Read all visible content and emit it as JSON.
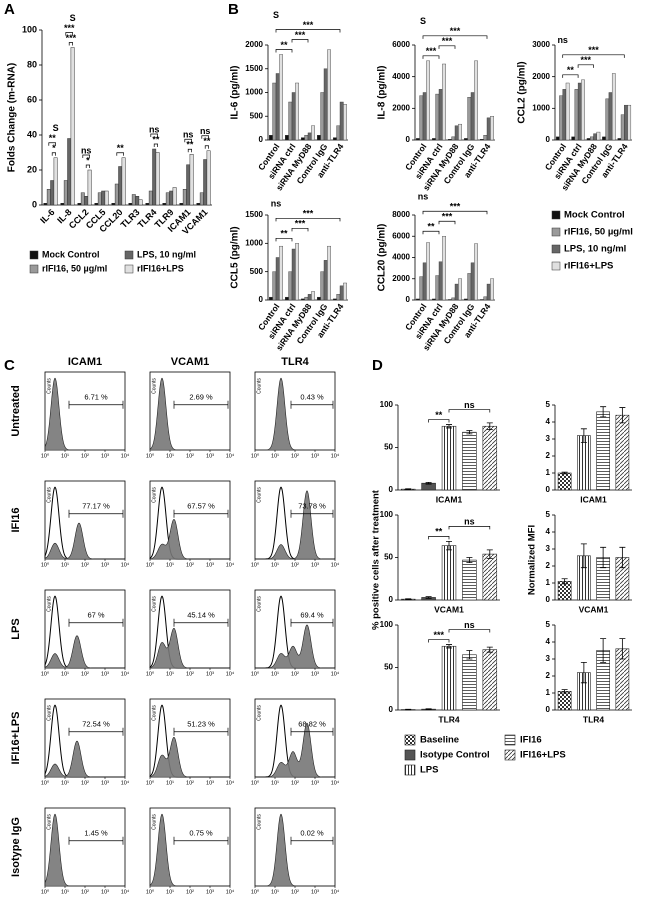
{
  "panel_labels": [
    "A",
    "B",
    "C",
    "D"
  ],
  "chart_data": [
    {
      "type": "bar",
      "ylabel": "Folds Change (m-RNA)",
      "categories": [
        "IL-6",
        "IL-8",
        "CCL2",
        "CCL5",
        "CCL20",
        "TLR3",
        "TLR4",
        "TLR9",
        "ICAM1",
        "VCAM1"
      ],
      "ylim": [
        0,
        100
      ],
      "yticks": [
        0,
        20,
        40,
        60,
        80,
        100
      ],
      "series": [
        {
          "name": "Mock Control",
          "color": "#111111",
          "values": [
            1,
            1,
            1,
            1,
            1,
            1,
            1,
            1,
            1,
            1
          ]
        },
        {
          "name": "rIFI16, 50 µg/ml",
          "color": "#9a9a9a",
          "values": [
            9,
            14,
            7,
            7,
            12,
            6,
            8,
            7,
            9,
            7
          ]
        },
        {
          "name": "LPS, 10 ng/ml",
          "color": "#666666",
          "values": [
            14,
            38,
            5,
            8,
            22,
            5,
            32,
            8,
            23,
            26
          ]
        },
        {
          "name": "rIFI16+LPS",
          "color": "#e0e0e0",
          "values": [
            27,
            90,
            20,
            8,
            27,
            3,
            30,
            10,
            29,
            31
          ]
        }
      ],
      "annotations": [
        {
          "category": 0,
          "from": 2,
          "to": 3,
          "text": "*"
        },
        {
          "category": 0,
          "from": 1,
          "to": 3,
          "text": "**"
        },
        {
          "category": 0,
          "from": 3,
          "to": 3,
          "text": "S"
        },
        {
          "category": 1,
          "from": 2,
          "to": 3,
          "text": "***"
        },
        {
          "category": 1,
          "from": 1,
          "to": 3,
          "text": "***"
        },
        {
          "category": 1,
          "from": 3,
          "to": 3,
          "text": "S"
        },
        {
          "category": 2,
          "from": 2,
          "to": 3,
          "text": "*"
        },
        {
          "category": 2,
          "from": 1,
          "to": 3,
          "text": "ns"
        },
        {
          "category": 4,
          "from": 1,
          "to": 3,
          "text": "**"
        },
        {
          "category": 6,
          "from": 2,
          "to": 3,
          "text": "**"
        },
        {
          "category": 6,
          "from": 1,
          "to": 3,
          "text": "ns"
        },
        {
          "category": 8,
          "from": 2,
          "to": 3,
          "text": "**"
        },
        {
          "category": 8,
          "from": 1,
          "to": 3,
          "text": "ns"
        },
        {
          "category": 9,
          "from": 2,
          "to": 3,
          "text": "**"
        },
        {
          "category": 9,
          "from": 1,
          "to": 3,
          "text": "ns"
        }
      ]
    },
    {
      "type": "grouped-bar-panels",
      "categories": [
        "Control",
        "siRNA ctrl",
        "siRNA MyD88",
        "Control IgG",
        "anti-TLR4"
      ],
      "series": [
        {
          "name": "Mock Control",
          "color": "#111111"
        },
        {
          "name": "rIFI16, 50 µg/ml",
          "color": "#9a9a9a"
        },
        {
          "name": "LPS, 10 ng/ml",
          "color": "#666666"
        },
        {
          "name": "rIFI16+LPS",
          "color": "#e0e0e0"
        }
      ],
      "subplots": [
        {
          "ylabel": "IL-6 (pg/ml)",
          "ylim": [
            0,
            2000
          ],
          "yticks": [
            0,
            500,
            1000,
            1500,
            2000
          ],
          "values": [
            [
              100,
              100,
              50,
              100,
              50
            ],
            [
              1200,
              800,
              100,
              1000,
              300
            ],
            [
              1400,
              1000,
              150,
              1500,
              800
            ],
            [
              1800,
              1200,
              300,
              1900,
              750
            ]
          ],
          "annotations": [
            {
              "from": 0,
              "to": 1,
              "text": "**"
            },
            {
              "from": 1,
              "to": 2,
              "text": "***"
            },
            {
              "from": 0,
              "to": 4,
              "text": "***"
            },
            {
              "from": 0,
              "to": 0,
              "text": "S"
            }
          ]
        },
        {
          "ylabel": "IL-8 (pg/ml)",
          "ylim": [
            0,
            6000
          ],
          "yticks": [
            0,
            2000,
            4000,
            6000
          ],
          "values": [
            [
              100,
              100,
              50,
              100,
              50
            ],
            [
              2800,
              2900,
              200,
              2700,
              300
            ],
            [
              3000,
              3200,
              900,
              3000,
              1400
            ],
            [
              5000,
              4800,
              1000,
              5000,
              1500
            ]
          ],
          "annotations": [
            {
              "from": 0,
              "to": 1,
              "text": "***"
            },
            {
              "from": 1,
              "to": 2,
              "text": "***"
            },
            {
              "from": 0,
              "to": 4,
              "text": "***"
            },
            {
              "from": 0,
              "to": 0,
              "text": "S"
            }
          ]
        },
        {
          "ylabel": "CCL2 (pg/ml)",
          "ylim": [
            0,
            3000
          ],
          "yticks": [
            0,
            1000,
            2000,
            3000
          ],
          "values": [
            [
              100,
              100,
              50,
              100,
              50
            ],
            [
              1400,
              1600,
              100,
              1300,
              800
            ],
            [
              1600,
              1800,
              200,
              1500,
              1100
            ],
            [
              1800,
              1900,
              250,
              2100,
              1100
            ]
          ],
          "annotations": [
            {
              "from": 0,
              "to": 1,
              "text": "**"
            },
            {
              "from": 1,
              "to": 2,
              "text": "***"
            },
            {
              "from": 0,
              "to": 4,
              "text": "***"
            },
            {
              "from": 0,
              "to": 0,
              "text": "ns"
            }
          ]
        },
        {
          "ylabel": "CCL5 (pg/ml)",
          "ylim": [
            0,
            1500
          ],
          "yticks": [
            0,
            500,
            1000,
            1500
          ],
          "values": [
            [
              50,
              50,
              20,
              50,
              20
            ],
            [
              500,
              500,
              50,
              500,
              100
            ],
            [
              750,
              900,
              100,
              700,
              250
            ],
            [
              950,
              1000,
              150,
              950,
              300
            ]
          ],
          "annotations": [
            {
              "from": 0,
              "to": 1,
              "text": "**"
            },
            {
              "from": 1,
              "to": 2,
              "text": "***"
            },
            {
              "from": 0,
              "to": 4,
              "text": "***"
            },
            {
              "from": 0,
              "to": 0,
              "text": "ns"
            }
          ]
        },
        {
          "ylabel": "CCL20 (pg/ml)",
          "ylim": [
            0,
            8000
          ],
          "yticks": [
            0,
            2000,
            4000,
            6000,
            8000
          ],
          "values": [
            [
              100,
              100,
              50,
              100,
              50
            ],
            [
              2200,
              2300,
              200,
              2500,
              300
            ],
            [
              3500,
              3600,
              1500,
              3500,
              1500
            ],
            [
              5400,
              6000,
              2000,
              5300,
              2000
            ]
          ],
          "annotations": [
            {
              "from": 0,
              "to": 1,
              "text": "**"
            },
            {
              "from": 1,
              "to": 2,
              "text": "***"
            },
            {
              "from": 0,
              "to": 4,
              "text": "***"
            },
            {
              "from": 0,
              "to": 0,
              "text": "ns"
            }
          ]
        }
      ]
    },
    {
      "type": "flow-histogram",
      "columns": [
        "ICAM1",
        "VCAM1",
        "TLR4"
      ],
      "rows": [
        "Untreated",
        "IFI16",
        "LPS",
        "IFI16+LPS",
        "Isotype IgG"
      ],
      "ylabel": "Counts",
      "xlim": [
        0,
        4
      ],
      "xticks": [
        {
          "value": 0,
          "label": "10⁰"
        },
        {
          "value": 1,
          "label": "10¹"
        },
        {
          "value": 2,
          "label": "10²"
        },
        {
          "value": 3,
          "label": "10³"
        },
        {
          "value": 4,
          "label": "10⁴"
        }
      ],
      "gates": [
        [
          1.2,
          3.9
        ],
        [
          1.2,
          3.9
        ],
        [
          1.8,
          3.9
        ]
      ],
      "panels": [
        [
          {
            "label": "6.71 %",
            "filled": [
              [
                0.5,
                100
              ]
            ],
            "open": []
          },
          {
            "label": "2.69 %",
            "filled": [
              [
                0.6,
                100
              ]
            ],
            "open": []
          },
          {
            "label": "0.43 %",
            "filled": [
              [
                1.3,
                100
              ]
            ],
            "open": []
          }
        ],
        [
          {
            "label": "77.17 %",
            "filled": [
              [
                0.5,
                22
              ],
              [
                1.7,
                50
              ]
            ],
            "open": [
              [
                0.5,
                100
              ]
            ]
          },
          {
            "label": "67.57 %",
            "filled": [
              [
                0.6,
                20
              ],
              [
                1.2,
                55
              ]
            ],
            "open": [
              [
                0.6,
                100
              ]
            ]
          },
          {
            "label": "73.78 %",
            "filled": [
              [
                1.3,
                20
              ],
              [
                2.6,
                95
              ]
            ],
            "open": [
              [
                1.3,
                100
              ]
            ]
          }
        ],
        [
          {
            "label": "67 %",
            "filled": [
              [
                0.5,
                20
              ],
              [
                1.6,
                45
              ]
            ],
            "open": [
              [
                0.5,
                100
              ]
            ]
          },
          {
            "label": "45.14 %",
            "filled": [
              [
                0.6,
                35
              ],
              [
                1.2,
                55
              ]
            ],
            "open": [
              [
                0.6,
                100
              ]
            ]
          },
          {
            "label": "69.4 %",
            "filled": [
              [
                1.3,
                20
              ],
              [
                1.9,
                30
              ],
              [
                2.6,
                60
              ]
            ],
            "open": [
              [
                1.3,
                100
              ]
            ]
          }
        ],
        [
          {
            "label": "72.54 %",
            "filled": [
              [
                0.5,
                18
              ],
              [
                1.6,
                50
              ]
            ],
            "open": [
              [
                0.5,
                100
              ]
            ]
          },
          {
            "label": "51.23 %",
            "filled": [
              [
                0.6,
                30
              ],
              [
                1.2,
                55
              ]
            ],
            "open": [
              [
                0.6,
                100
              ]
            ]
          },
          {
            "label": "68.82 %",
            "filled": [
              [
                1.3,
                20
              ],
              [
                1.9,
                35
              ],
              [
                2.6,
                75
              ]
            ],
            "open": [
              [
                1.3,
                100
              ]
            ]
          }
        ],
        [
          {
            "label": "1.45 %",
            "filled": [
              [
                0.5,
                100
              ]
            ],
            "open": []
          },
          {
            "label": "0.75 %",
            "filled": [
              [
                0.6,
                100
              ]
            ],
            "open": []
          },
          {
            "label": "0.02 %",
            "filled": [
              [
                1.3,
                100
              ]
            ],
            "open": []
          }
        ]
      ]
    },
    {
      "type": "pattern-bar-panels",
      "ylabels": [
        "% positive cells after treatment",
        "Normalized MFI"
      ],
      "series": [
        {
          "name": "Baseline",
          "pattern": "checker",
          "color": "#333333"
        },
        {
          "name": "Isotype Control",
          "pattern": "solid",
          "color": "#555555"
        },
        {
          "name": "LPS",
          "pattern": "vstripes",
          "color": "#333333"
        },
        {
          "name": "IFI16",
          "pattern": "hlines",
          "color": "#333333"
        },
        {
          "name": "IFI16+LPS",
          "pattern": "diag",
          "color": "#333333"
        }
      ],
      "subplots": [
        {
          "column": 0,
          "xlabel": "ICAM1",
          "ylim": [
            0,
            100
          ],
          "yticks": [
            0,
            50,
            100
          ],
          "values": [
            1,
            8,
            75,
            68,
            75
          ],
          "errors": [
            0.5,
            1,
            2,
            2,
            4
          ],
          "annotations": [
            {
              "from": 1,
              "to": 2,
              "text": "**"
            },
            {
              "from": 2,
              "to": 4,
              "text": "ns"
            }
          ]
        },
        {
          "column": 1,
          "xlabel": "ICAM1",
          "ylim": [
            0,
            5
          ],
          "yticks": [
            0,
            1,
            2,
            3,
            4,
            5
          ],
          "values": [
            1.0,
            null,
            3.2,
            4.6,
            4.4
          ],
          "errors": [
            0.05,
            null,
            0.4,
            0.3,
            0.45
          ],
          "annotations": []
        },
        {
          "column": 0,
          "xlabel": "VCAM1",
          "ylim": [
            0,
            100
          ],
          "yticks": [
            0,
            50,
            100
          ],
          "values": [
            1,
            3,
            64,
            47,
            54
          ],
          "errors": [
            0.5,
            1,
            5,
            3,
            5
          ],
          "annotations": [
            {
              "from": 1,
              "to": 2,
              "text": "**"
            },
            {
              "from": 2,
              "to": 4,
              "text": "ns"
            }
          ]
        },
        {
          "column": 1,
          "xlabel": "VCAM1",
          "ylim": [
            0,
            5
          ],
          "yticks": [
            0,
            1,
            2,
            3,
            4,
            5
          ],
          "values": [
            1.1,
            null,
            2.6,
            2.5,
            2.5
          ],
          "errors": [
            0.15,
            null,
            0.7,
            0.6,
            0.6
          ],
          "annotations": []
        },
        {
          "column": 0,
          "xlabel": "TLR4",
          "ylim": [
            0,
            100
          ],
          "yticks": [
            0,
            50,
            100
          ],
          "values": [
            0.5,
            1,
            75,
            65,
            71
          ],
          "errors": [
            0.3,
            0.5,
            2,
            5,
            3
          ],
          "annotations": [
            {
              "from": 1,
              "to": 2,
              "text": "***"
            },
            {
              "from": 2,
              "to": 4,
              "text": "ns"
            }
          ]
        },
        {
          "column": 1,
          "xlabel": "TLR4",
          "ylim": [
            0,
            5
          ],
          "yticks": [
            0,
            1,
            2,
            3,
            4,
            5
          ],
          "values": [
            1.1,
            null,
            2.2,
            3.5,
            3.6
          ],
          "errors": [
            0.1,
            null,
            0.6,
            0.7,
            0.6
          ],
          "annotations": []
        }
      ]
    }
  ]
}
